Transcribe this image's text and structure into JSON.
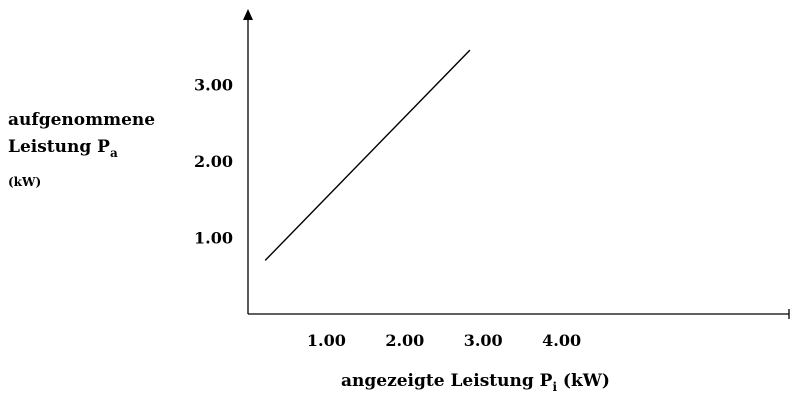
{
  "chart_data": {
    "type": "line",
    "title": "",
    "xlabel": {
      "text": "angezeigte Leistung P",
      "subscript": "i",
      "unit": " (kW)"
    },
    "ylabel": {
      "line1": "aufgenommene",
      "line2": "Leistung P",
      "line2_subscript": "a",
      "unit": "(kW)"
    },
    "x_ticks": [
      "1.00",
      "2.00",
      "3.00",
      "4.00"
    ],
    "y_ticks": [
      "1.00",
      "2.00",
      "3.00"
    ],
    "series": [
      {
        "x": [
          0.22,
          2.83
        ],
        "y": [
          0.7,
          3.45
        ]
      }
    ],
    "grid": false,
    "legend": "none"
  }
}
